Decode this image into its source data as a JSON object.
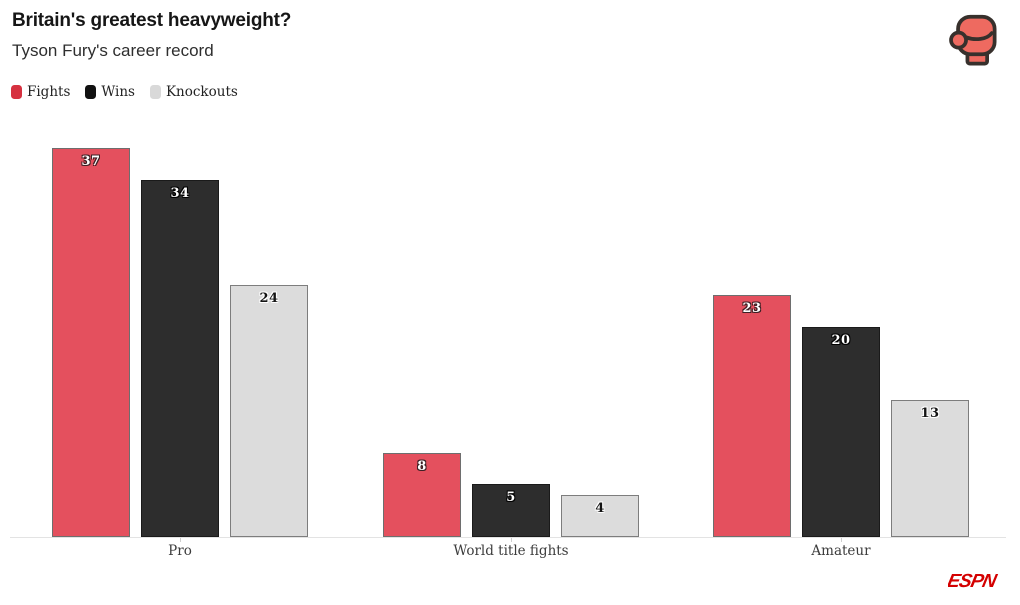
{
  "header": {
    "title": "Britain's greatest heavyweight?",
    "subtitle": "Tyson Fury's career record"
  },
  "legend": {
    "items": [
      {
        "label": "Fights",
        "color": "#d63140"
      },
      {
        "label": "Wins",
        "color": "#111111"
      },
      {
        "label": "Knockouts",
        "color": "#d9d9d9"
      }
    ]
  },
  "chart_data": {
    "type": "bar",
    "title": "Britain's greatest heavyweight?",
    "subtitle": "Tyson Fury's career record",
    "categories": [
      "Pro",
      "World title fights",
      "Amateur"
    ],
    "series": [
      {
        "name": "Fights",
        "color": "#e4505e",
        "border": "#6e6e6e",
        "label_color": "#ffffff",
        "label_outline": "#3a2024",
        "values": [
          37,
          8,
          23
        ]
      },
      {
        "name": "Wins",
        "color": "#2d2d2d",
        "border": "#1a1a1a",
        "label_color": "#ffffff",
        "label_outline": "#000000",
        "values": [
          34,
          5,
          20
        ]
      },
      {
        "name": "Knockouts",
        "color": "#dcdcdc",
        "border": "#7d7d7d",
        "label_color": "#141414",
        "label_outline": "#ffffff",
        "values": [
          24,
          4,
          13
        ]
      }
    ],
    "xlabel": "",
    "ylabel": "",
    "ylim": [
      0,
      39
    ],
    "grid": false,
    "bar_labels": true,
    "legend_position": "top-left"
  },
  "icons": {
    "glove": "boxing-glove-icon",
    "glove_fill": "#ee6a60",
    "glove_stroke": "#37302c"
  },
  "footer": {
    "brand": "ESPN",
    "brand_color": "#d40000"
  }
}
